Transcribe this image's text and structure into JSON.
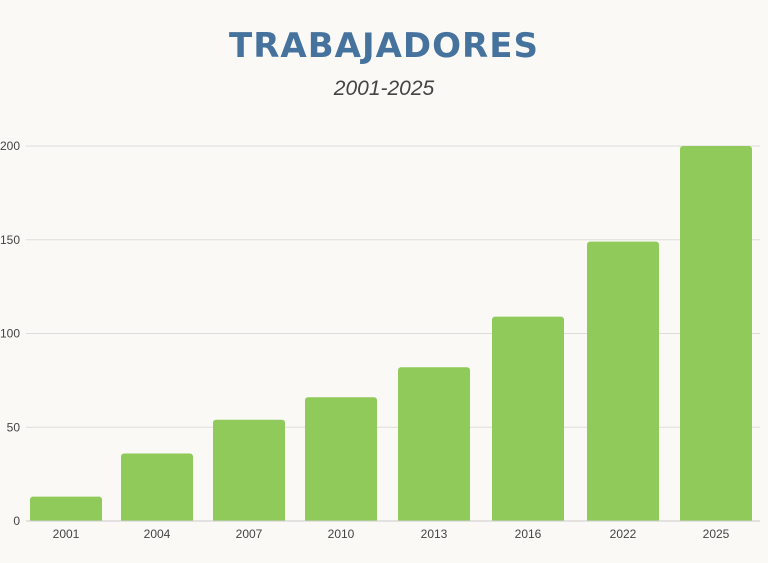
{
  "chart_data": {
    "type": "bar",
    "title": "TRABAJADORES",
    "subtitle": "2001-2025",
    "xlabel": "",
    "ylabel": "",
    "categories": [
      "2001",
      "2004",
      "2007",
      "2010",
      "2013",
      "2016",
      "2022",
      "2025"
    ],
    "values": [
      13,
      36,
      54,
      66,
      82,
      109,
      149,
      200
    ],
    "yticks": [
      0,
      50,
      100,
      150,
      200
    ],
    "ylim": [
      0,
      200
    ],
    "grid": true,
    "legend": "none",
    "colors": {
      "bar": "#8fca5a",
      "title": "#46729e",
      "grid": "#dddddd",
      "background": "#faf9f5"
    }
  }
}
